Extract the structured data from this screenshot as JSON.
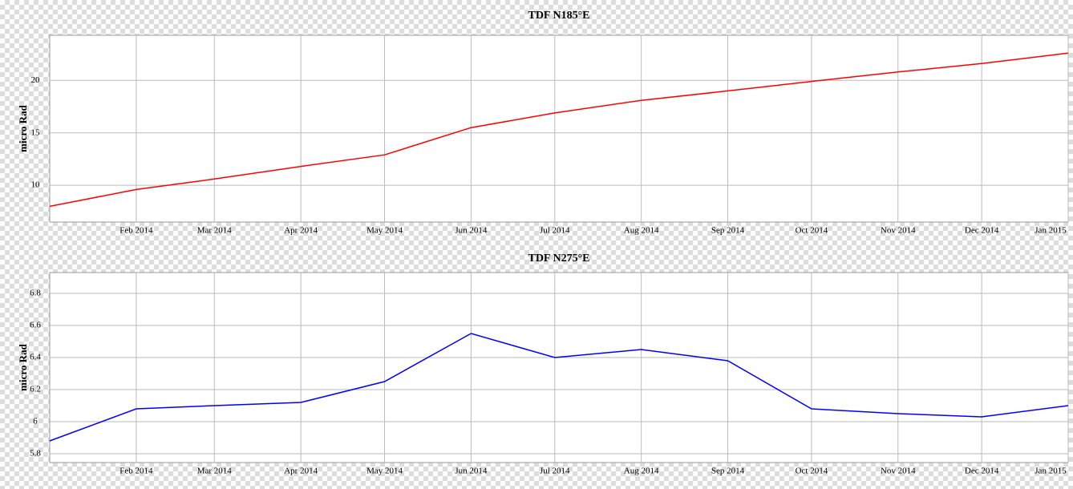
{
  "chart_data": [
    {
      "type": "line",
      "title": "TDF N185°E",
      "y_label": "micro Rad",
      "x": [
        "2014-01",
        "2014-02",
        "2014-03",
        "2014-04",
        "2014-05",
        "2014-06",
        "2014-07",
        "2014-08",
        "2014-09",
        "2014-10",
        "2014-11",
        "2014-12",
        "2015-01"
      ],
      "series": [
        {
          "name": "TDF N185°E",
          "color": "#ff0000",
          "values": [
            8.0,
            9.6,
            10.6,
            11.8,
            12.9,
            15.5,
            16.9,
            18.1,
            19.0,
            19.9,
            20.8,
            21.6,
            22.6
          ]
        }
      ],
      "xlim": [
        "2014-01",
        "2015-01"
      ],
      "ylim": [
        6.5,
        24.3
      ],
      "yticks": [
        10,
        15,
        20
      ],
      "xticks": [
        {
          "value": "2014-02",
          "label": "Feb 2014"
        },
        {
          "value": "2014-03",
          "label": "Mar 2014"
        },
        {
          "value": "2014-04",
          "label": "Apr 2014"
        },
        {
          "value": "2014-05",
          "label": "May 2014"
        },
        {
          "value": "2014-06",
          "label": "Jun 2014"
        },
        {
          "value": "2014-07",
          "label": "Jul 2014"
        },
        {
          "value": "2014-08",
          "label": "Aug 2014"
        },
        {
          "value": "2014-09",
          "label": "Sep 2014"
        },
        {
          "value": "2014-10",
          "label": "Oct 2014"
        },
        {
          "value": "2014-11",
          "label": "Nov 2014"
        },
        {
          "value": "2014-12",
          "label": "Dec 2014"
        },
        {
          "value": "2015-01",
          "label": "Jan 2015"
        }
      ],
      "grid": true
    },
    {
      "type": "line",
      "title": "TDF N275°E",
      "y_label": "micro Rad",
      "x": [
        "2014-01",
        "2014-02",
        "2014-03",
        "2014-04",
        "2014-05",
        "2014-06",
        "2014-07",
        "2014-08",
        "2014-09",
        "2014-10",
        "2014-11",
        "2014-12",
        "2015-01"
      ],
      "series": [
        {
          "name": "TDF N275°E",
          "color": "#0000ff",
          "values": [
            5.88,
            6.08,
            6.1,
            6.12,
            6.25,
            6.55,
            6.4,
            6.45,
            6.38,
            6.08,
            6.05,
            6.03,
            6.1
          ]
        }
      ],
      "xlim": [
        "2014-01",
        "2015-01"
      ],
      "ylim": [
        5.745,
        6.93
      ],
      "yticks": [
        5.8,
        6,
        6.2,
        6.4,
        6.6,
        6.8
      ],
      "xticks": [
        {
          "value": "2014-02",
          "label": "Feb 2014"
        },
        {
          "value": "2014-03",
          "label": "Mar 2014"
        },
        {
          "value": "2014-04",
          "label": "Apr 2014"
        },
        {
          "value": "2014-05",
          "label": "May 2014"
        },
        {
          "value": "2014-06",
          "label": "Jun 2014"
        },
        {
          "value": "2014-07",
          "label": "Jul 2014"
        },
        {
          "value": "2014-08",
          "label": "Aug 2014"
        },
        {
          "value": "2014-09",
          "label": "Sep 2014"
        },
        {
          "value": "2014-10",
          "label": "Oct 2014"
        },
        {
          "value": "2014-11",
          "label": "Nov 2014"
        },
        {
          "value": "2014-12",
          "label": "Dec 2014"
        },
        {
          "value": "2015-01",
          "label": "Jan 2015"
        }
      ],
      "grid": true
    }
  ]
}
